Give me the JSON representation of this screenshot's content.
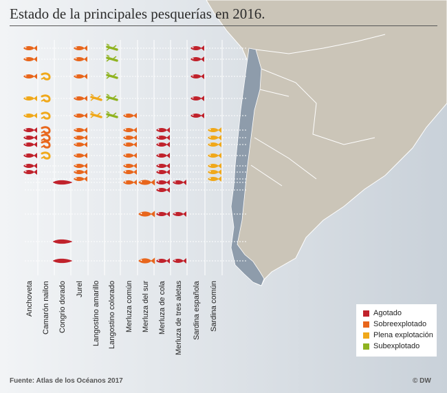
{
  "title": "Estado de la principales pesquerías en 2016.",
  "source": "Fuente: Atlas de los Océanos 2017",
  "credit": "© DW",
  "colors": {
    "Agotado": "#c0222c",
    "Sobreexplotado": "#e8661c",
    "Plena explotación": "#f0a81a",
    "Subexplotado": "#8fb320",
    "land": "#cbc5b8",
    "chile": "#8e9cab"
  },
  "legend": [
    {
      "label": "Agotado",
      "status": "Agotado"
    },
    {
      "label": "Sobreexplotado",
      "status": "Sobreexplotado"
    },
    {
      "label": "Plena explotación",
      "status": "Plena explotación"
    },
    {
      "label": "Subexplotado",
      "status": "Subexplotado"
    }
  ],
  "chart_data": {
    "type": "table",
    "title": "Estado de la principales pesquerías en 2016.",
    "columns": [
      "Anchoveta",
      "Camarón nailon",
      "Congrio dorado",
      "Jurel",
      "Langostino amarillo",
      "Langostino colorado",
      "Merluza común",
      "Merluza del sur",
      "Merluza de cola",
      "Merluza de tres aletas",
      "Sardina española",
      "Sardina común"
    ],
    "legend_entries": [
      "Agotado",
      "Sobreexplotado",
      "Plena explotación",
      "Subexplotado"
    ],
    "rows": [
      {
        "status": [
          "Sobreexplotado",
          null,
          null,
          "Sobreexplotado",
          null,
          "Subexplotado",
          null,
          null,
          null,
          null,
          "Agotado",
          null
        ]
      },
      {
        "status": [
          "Sobreexplotado",
          null,
          null,
          "Sobreexplotado",
          null,
          "Subexplotado",
          null,
          null,
          null,
          null,
          "Agotado",
          null
        ]
      },
      {
        "status": [
          "Sobreexplotado",
          "Plena explotación",
          null,
          "Sobreexplotado",
          null,
          "Subexplotado",
          null,
          null,
          null,
          null,
          "Agotado",
          null
        ]
      },
      {
        "status": [
          "Plena explotación",
          "Plena explotación",
          null,
          "Sobreexplotado",
          "Plena explotación",
          "Subexplotado",
          null,
          null,
          null,
          null,
          "Agotado",
          null
        ]
      },
      {
        "status": [
          "Plena explotación",
          "Plena explotación",
          null,
          "Sobreexplotado",
          "Plena explotación",
          "Subexplotado",
          "Sobreexplotado",
          null,
          null,
          null,
          "Agotado",
          null
        ]
      },
      {
        "status": [
          "Agotado",
          "Sobreexplotado",
          null,
          "Sobreexplotado",
          null,
          null,
          "Sobreexplotado",
          null,
          "Agotado",
          null,
          null,
          "Plena explotación"
        ]
      },
      {
        "status": [
          "Agotado",
          "Sobreexplotado",
          null,
          "Sobreexplotado",
          null,
          null,
          "Sobreexplotado",
          null,
          "Agotado",
          null,
          null,
          "Plena explotación"
        ]
      },
      {
        "status": [
          "Agotado",
          "Sobreexplotado",
          null,
          "Sobreexplotado",
          null,
          null,
          "Sobreexplotado",
          null,
          "Agotado",
          null,
          null,
          "Plena explotación"
        ]
      },
      {
        "status": [
          "Agotado",
          "Plena explotación",
          null,
          "Sobreexplotado",
          null,
          null,
          "Sobreexplotado",
          null,
          "Agotado",
          null,
          null,
          "Plena explotación"
        ]
      },
      {
        "status": [
          "Agotado",
          null,
          null,
          "Sobreexplotado",
          null,
          null,
          "Sobreexplotado",
          null,
          "Agotado",
          null,
          null,
          "Plena explotación"
        ]
      },
      {
        "status": [
          "Agotado",
          null,
          null,
          "Sobreexplotado",
          null,
          null,
          "Sobreexplotado",
          null,
          "Agotado",
          null,
          null,
          "Plena explotación"
        ]
      },
      {
        "status": [
          null,
          null,
          null,
          "Sobreexplotado",
          null,
          null,
          null,
          null,
          null,
          null,
          null,
          "Plena explotación"
        ]
      },
      {
        "status": [
          null,
          null,
          "Agotado",
          null,
          null,
          null,
          "Sobreexplotado",
          "Sobreexplotado",
          "Agotado",
          "Agotado",
          null,
          null
        ]
      },
      {
        "status": [
          null,
          null,
          null,
          null,
          null,
          null,
          null,
          null,
          "Agotado",
          null,
          null,
          null
        ]
      },
      {
        "status": [
          null,
          null,
          null,
          null,
          null,
          null,
          null,
          "Sobreexplotado",
          "Agotado",
          "Agotado",
          null,
          null
        ]
      },
      {
        "status": [
          null,
          null,
          "Agotado",
          null,
          null,
          null,
          null,
          null,
          null,
          null,
          null,
          null
        ]
      },
      {
        "status": [
          null,
          null,
          "Agotado",
          null,
          null,
          null,
          null,
          "Sobreexplotado",
          "Agotado",
          "Agotado",
          null,
          null
        ]
      }
    ]
  }
}
